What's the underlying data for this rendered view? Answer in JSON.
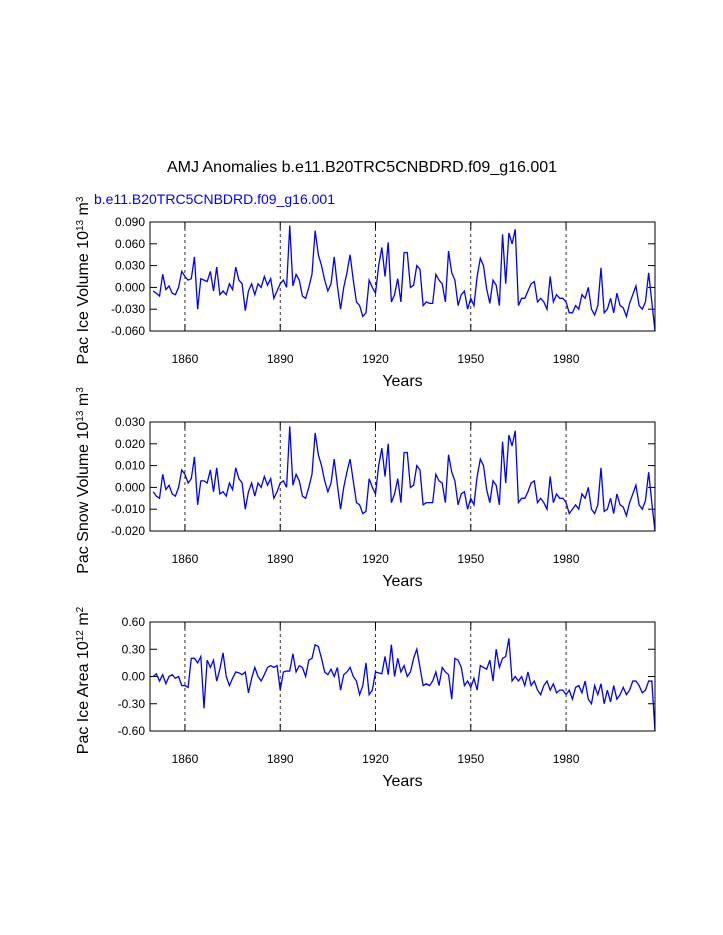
{
  "chart_data": [
    {
      "type": "line",
      "title": "AMJ Anomalies b.e11.B20TRC5CNBDRD.f09_g16.001",
      "subtitle": "b.e11.B20TRC5CNBDRD.f09_g16.001",
      "ylabel": [
        "Pac Ice Volume 10",
        "13",
        " m",
        "3"
      ],
      "xlabel": "Years",
      "xlim": [
        1849,
        2008
      ],
      "xticks": [
        1860,
        1890,
        1920,
        1950,
        1980
      ],
      "grid": true,
      "ylim": [
        -0.06,
        0.09
      ],
      "yticks": [
        {
          "value": 0.09,
          "label": "0.090"
        },
        {
          "value": 0.06,
          "label": "0.060"
        },
        {
          "value": 0.03,
          "label": "0.030"
        },
        {
          "value": 0,
          "label": "0.000"
        },
        {
          "value": -0.03,
          "label": "-0.030"
        },
        {
          "value": -0.06,
          "label": "-0.060"
        }
      ],
      "x": [
        1850,
        1851,
        1852,
        1853,
        1854,
        1855,
        1856,
        1857,
        1858,
        1859,
        1860,
        1861,
        1862,
        1863,
        1864,
        1865,
        1866,
        1867,
        1868,
        1869,
        1870,
        1871,
        1872,
        1873,
        1874,
        1875,
        1876,
        1877,
        1878,
        1879,
        1880,
        1881,
        1882,
        1883,
        1884,
        1885,
        1886,
        1887,
        1888,
        1889,
        1890,
        1891,
        1892,
        1893,
        1894,
        1895,
        1896,
        1897,
        1898,
        1899,
        1900,
        1901,
        1902,
        1903,
        1904,
        1905,
        1906,
        1907,
        1908,
        1909,
        1910,
        1911,
        1912,
        1913,
        1914,
        1915,
        1916,
        1917,
        1918,
        1919,
        1920,
        1921,
        1922,
        1923,
        1924,
        1925,
        1926,
        1927,
        1928,
        1929,
        1930,
        1931,
        1932,
        1933,
        1934,
        1935,
        1936,
        1937,
        1938,
        1939,
        1940,
        1941,
        1942,
        1943,
        1944,
        1945,
        1946,
        1947,
        1948,
        1949,
        1950,
        1951,
        1952,
        1953,
        1954,
        1955,
        1956,
        1957,
        1958,
        1959,
        1960,
        1961,
        1962,
        1963,
        1964,
        1965,
        1966,
        1967,
        1968,
        1969,
        1970,
        1971,
        1972,
        1973,
        1974,
        1975,
        1976,
        1977,
        1978,
        1979,
        1980,
        1981,
        1982,
        1983,
        1984,
        1985,
        1986,
        1987,
        1988,
        1989,
        1990,
        1991,
        1992,
        1993,
        1994,
        1995,
        1996,
        1997,
        1998,
        1999,
        2000,
        2001,
        2002,
        2003,
        2004,
        2005,
        2006,
        2007,
        2008
      ],
      "series": [
        {
          "color": "#0000ff",
          "values": [
            -0.005,
            -0.008,
            -0.012,
            0.018,
            -0.003,
            0.002,
            -0.008,
            -0.01,
            0.0,
            0.022,
            0.015,
            0.01,
            0.012,
            0.042,
            -0.03,
            0.012,
            0.01,
            0.008,
            0.022,
            -0.005,
            0.028,
            -0.01,
            -0.005,
            -0.01,
            0.005,
            -0.003,
            0.028,
            0.01,
            0.005,
            -0.032,
            -0.005,
            0.005,
            -0.01,
            0.005,
            0.0,
            0.015,
            0.003,
            0.012,
            -0.015,
            -0.005,
            0.005,
            0.01,
            0.0,
            0.085,
            0.002,
            0.018,
            0.01,
            -0.012,
            -0.015,
            0.0,
            0.018,
            0.078,
            0.045,
            0.03,
            0.01,
            -0.005,
            0.005,
            0.042,
            0.002,
            -0.03,
            0.0,
            0.02,
            0.045,
            0.01,
            -0.02,
            -0.025,
            -0.04,
            -0.035,
            0.01,
            0.0,
            -0.008,
            0.03,
            0.055,
            0.015,
            0.062,
            -0.02,
            -0.01,
            0.012,
            -0.02,
            0.048,
            0.048,
            0.0,
            0.003,
            0.03,
            0.025,
            -0.025,
            -0.02,
            -0.022,
            -0.022,
            0.018,
            0.01,
            0.005,
            -0.02,
            0.05,
            0.02,
            0.01,
            -0.025,
            -0.01,
            -0.005,
            -0.03,
            -0.015,
            -0.025,
            0.015,
            0.04,
            0.03,
            -0.002,
            -0.022,
            0.01,
            0.003,
            -0.025,
            0.073,
            0.005,
            0.075,
            0.06,
            0.08,
            -0.025,
            -0.015,
            -0.015,
            -0.005,
            0.005,
            0.008,
            -0.02,
            -0.015,
            -0.02,
            -0.03,
            0.015,
            -0.02,
            -0.01,
            -0.015,
            -0.015,
            -0.02,
            -0.035,
            -0.035,
            -0.025,
            -0.03,
            -0.01,
            -0.015,
            0.0,
            -0.03,
            -0.038,
            -0.025,
            0.027,
            -0.035,
            -0.03,
            -0.015,
            -0.035,
            -0.008,
            -0.025,
            -0.028,
            -0.04,
            -0.022,
            -0.01,
            0.002,
            -0.025,
            -0.03,
            -0.02,
            0.02,
            -0.02,
            -0.06
          ]
        }
      ]
    },
    {
      "type": "line",
      "ylabel": [
        "Pac Snow Volume 10",
        "13",
        " m",
        "3"
      ],
      "xlabel": "Years",
      "xlim": [
        1849,
        2008
      ],
      "xticks": [
        1860,
        1890,
        1920,
        1950,
        1980
      ],
      "grid": true,
      "ylim": [
        -0.02,
        0.03
      ],
      "yticks": [
        {
          "value": 0.03,
          "label": "0.030"
        },
        {
          "value": 0.02,
          "label": "0.020"
        },
        {
          "value": 0.01,
          "label": "0.010"
        },
        {
          "value": 0,
          "label": "0.000"
        },
        {
          "value": -0.01,
          "label": "-0.010"
        },
        {
          "value": -0.02,
          "label": "-0.020"
        }
      ],
      "x": [
        1850,
        1851,
        1852,
        1853,
        1854,
        1855,
        1856,
        1857,
        1858,
        1859,
        1860,
        1861,
        1862,
        1863,
        1864,
        1865,
        1866,
        1867,
        1868,
        1869,
        1870,
        1871,
        1872,
        1873,
        1874,
        1875,
        1876,
        1877,
        1878,
        1879,
        1880,
        1881,
        1882,
        1883,
        1884,
        1885,
        1886,
        1887,
        1888,
        1889,
        1890,
        1891,
        1892,
        1893,
        1894,
        1895,
        1896,
        1897,
        1898,
        1899,
        1900,
        1901,
        1902,
        1903,
        1904,
        1905,
        1906,
        1907,
        1908,
        1909,
        1910,
        1911,
        1912,
        1913,
        1914,
        1915,
        1916,
        1917,
        1918,
        1919,
        1920,
        1921,
        1922,
        1923,
        1924,
        1925,
        1926,
        1927,
        1928,
        1929,
        1930,
        1931,
        1932,
        1933,
        1934,
        1935,
        1936,
        1937,
        1938,
        1939,
        1940,
        1941,
        1942,
        1943,
        1944,
        1945,
        1946,
        1947,
        1948,
        1949,
        1950,
        1951,
        1952,
        1953,
        1954,
        1955,
        1956,
        1957,
        1958,
        1959,
        1960,
        1961,
        1962,
        1963,
        1964,
        1965,
        1966,
        1967,
        1968,
        1969,
        1970,
        1971,
        1972,
        1973,
        1974,
        1975,
        1976,
        1977,
        1978,
        1979,
        1980,
        1981,
        1982,
        1983,
        1984,
        1985,
        1986,
        1987,
        1988,
        1989,
        1990,
        1991,
        1992,
        1993,
        1994,
        1995,
        1996,
        1997,
        1998,
        1999,
        2000,
        2001,
        2002,
        2003,
        2004,
        2005,
        2006,
        2007,
        2008
      ],
      "series": [
        {
          "color": "#0000ff",
          "values": [
            -0.002,
            -0.004,
            -0.005,
            0.006,
            -0.001,
            0.001,
            -0.003,
            -0.004,
            0.0,
            0.008,
            0.006,
            0.002,
            0.004,
            0.014,
            -0.008,
            0.003,
            0.003,
            0.002,
            0.008,
            -0.002,
            0.009,
            -0.003,
            -0.002,
            -0.004,
            0.002,
            -0.001,
            0.009,
            0.004,
            0.002,
            -0.01,
            -0.002,
            0.002,
            -0.004,
            0.002,
            0.0,
            0.005,
            0.001,
            0.004,
            -0.005,
            -0.002,
            0.002,
            0.003,
            0.0,
            0.028,
            0.001,
            0.006,
            0.003,
            -0.004,
            -0.005,
            0.0,
            0.006,
            0.025,
            0.015,
            0.01,
            0.003,
            -0.002,
            0.002,
            0.013,
            0.001,
            -0.01,
            0.0,
            0.007,
            0.013,
            0.003,
            -0.007,
            -0.008,
            -0.012,
            -0.011,
            0.004,
            0.0,
            -0.003,
            0.01,
            0.018,
            0.005,
            0.02,
            -0.007,
            -0.003,
            0.004,
            -0.007,
            0.016,
            0.016,
            0.0,
            0.001,
            0.01,
            0.008,
            -0.008,
            -0.007,
            -0.007,
            -0.007,
            0.006,
            0.003,
            0.002,
            -0.007,
            0.015,
            0.007,
            0.003,
            -0.008,
            -0.003,
            -0.002,
            -0.01,
            -0.005,
            -0.008,
            0.005,
            0.013,
            0.01,
            -0.001,
            -0.007,
            0.003,
            0.001,
            -0.008,
            0.021,
            0.002,
            0.024,
            0.019,
            0.026,
            -0.007,
            -0.005,
            -0.005,
            -0.002,
            0.002,
            0.003,
            -0.007,
            -0.005,
            -0.007,
            -0.01,
            0.005,
            -0.007,
            -0.003,
            -0.005,
            -0.005,
            -0.007,
            -0.012,
            -0.01,
            -0.008,
            -0.01,
            -0.003,
            -0.005,
            0.0,
            -0.01,
            -0.012,
            -0.008,
            0.009,
            -0.011,
            -0.01,
            -0.005,
            -0.012,
            -0.003,
            -0.008,
            -0.009,
            -0.013,
            -0.007,
            -0.003,
            0.001,
            -0.008,
            -0.01,
            -0.006,
            0.007,
            -0.007,
            -0.02
          ]
        }
      ]
    },
    {
      "type": "line",
      "ylabel": [
        "Pac Ice Area 10",
        "12",
        " m",
        "2"
      ],
      "xlabel": "Years",
      "xlim": [
        1849,
        2008
      ],
      "xticks": [
        1860,
        1890,
        1920,
        1950,
        1980
      ],
      "grid": true,
      "ylim": [
        -0.6,
        0.6
      ],
      "yticks": [
        {
          "value": 0.6,
          "label": "0.60"
        },
        {
          "value": 0.3,
          "label": "0.30"
        },
        {
          "value": 0,
          "label": "0.00"
        },
        {
          "value": -0.3,
          "label": "-0.30"
        },
        {
          "value": -0.6,
          "label": "-0.60"
        }
      ],
      "x": [
        1850,
        1851,
        1852,
        1853,
        1854,
        1855,
        1856,
        1857,
        1858,
        1859,
        1860,
        1861,
        1862,
        1863,
        1864,
        1865,
        1866,
        1867,
        1868,
        1869,
        1870,
        1871,
        1872,
        1873,
        1874,
        1875,
        1876,
        1877,
        1878,
        1879,
        1880,
        1881,
        1882,
        1883,
        1884,
        1885,
        1886,
        1887,
        1888,
        1889,
        1890,
        1891,
        1892,
        1893,
        1894,
        1895,
        1896,
        1897,
        1898,
        1899,
        1900,
        1901,
        1902,
        1903,
        1904,
        1905,
        1906,
        1907,
        1908,
        1909,
        1910,
        1911,
        1912,
        1913,
        1914,
        1915,
        1916,
        1917,
        1918,
        1919,
        1920,
        1921,
        1922,
        1923,
        1924,
        1925,
        1926,
        1927,
        1928,
        1929,
        1930,
        1931,
        1932,
        1933,
        1934,
        1935,
        1936,
        1937,
        1938,
        1939,
        1940,
        1941,
        1942,
        1943,
        1944,
        1945,
        1946,
        1947,
        1948,
        1949,
        1950,
        1951,
        1952,
        1953,
        1954,
        1955,
        1956,
        1957,
        1958,
        1959,
        1960,
        1961,
        1962,
        1963,
        1964,
        1965,
        1966,
        1967,
        1968,
        1969,
        1970,
        1971,
        1972,
        1973,
        1974,
        1975,
        1976,
        1977,
        1978,
        1979,
        1980,
        1981,
        1982,
        1983,
        1984,
        1985,
        1986,
        1987,
        1988,
        1989,
        1990,
        1991,
        1992,
        1993,
        1994,
        1995,
        1996,
        1997,
        1998,
        1999,
        2000,
        2001,
        2002,
        2003,
        2004,
        2005,
        2006,
        2007,
        2008
      ],
      "series": [
        {
          "color": "#0000ff",
          "values": [
            0.0,
            0.03,
            -0.05,
            0.02,
            -0.08,
            0.0,
            0.02,
            -0.02,
            0.0,
            -0.1,
            -0.1,
            -0.12,
            0.2,
            0.2,
            0.15,
            0.22,
            -0.35,
            0.18,
            0.1,
            0.18,
            -0.05,
            0.08,
            0.26,
            0.0,
            -0.1,
            -0.02,
            0.05,
            0.04,
            0.02,
            0.05,
            -0.18,
            -0.02,
            0.1,
            0.0,
            -0.05,
            0.02,
            0.1,
            0.12,
            0.1,
            0.12,
            -0.15,
            0.05,
            0.06,
            0.06,
            0.25,
            0.05,
            0.12,
            0.1,
            0.0,
            0.18,
            0.2,
            0.35,
            0.33,
            0.2,
            0.05,
            0.02,
            0.08,
            0.0,
            0.1,
            -0.15,
            0.02,
            0.05,
            0.1,
            0.0,
            -0.05,
            -0.2,
            -0.1,
            0.15,
            -0.2,
            -0.15,
            0.05,
            0.04,
            0.03,
            0.22,
            0.02,
            0.35,
            0.0,
            0.2,
            0.05,
            0.12,
            0.0,
            0.05,
            0.2,
            0.3,
            0.1,
            -0.1,
            -0.08,
            -0.1,
            -0.05,
            0.05,
            -0.1,
            0.1,
            0.05,
            0.02,
            -0.25,
            0.2,
            0.18,
            0.1,
            -0.1,
            -0.05,
            -0.12,
            -0.02,
            -0.15,
            0.12,
            0.1,
            0.08,
            0.18,
            -0.05,
            0.3,
            0.1,
            0.2,
            0.22,
            0.42,
            -0.05,
            0.0,
            -0.05,
            0.0,
            -0.1,
            0.05,
            -0.1,
            -0.05,
            -0.15,
            -0.2,
            -0.1,
            -0.05,
            -0.15,
            -0.08,
            -0.18,
            -0.15,
            -0.15,
            -0.2,
            -0.15,
            -0.25,
            -0.12,
            -0.1,
            -0.18,
            -0.05,
            -0.25,
            -0.3,
            -0.1,
            -0.2,
            -0.08,
            -0.3,
            -0.15,
            -0.28,
            -0.1,
            -0.25,
            -0.2,
            -0.12,
            -0.2,
            -0.15,
            -0.05,
            -0.05,
            -0.1,
            -0.18,
            -0.15,
            -0.05,
            -0.05,
            -0.6
          ]
        }
      ]
    }
  ]
}
